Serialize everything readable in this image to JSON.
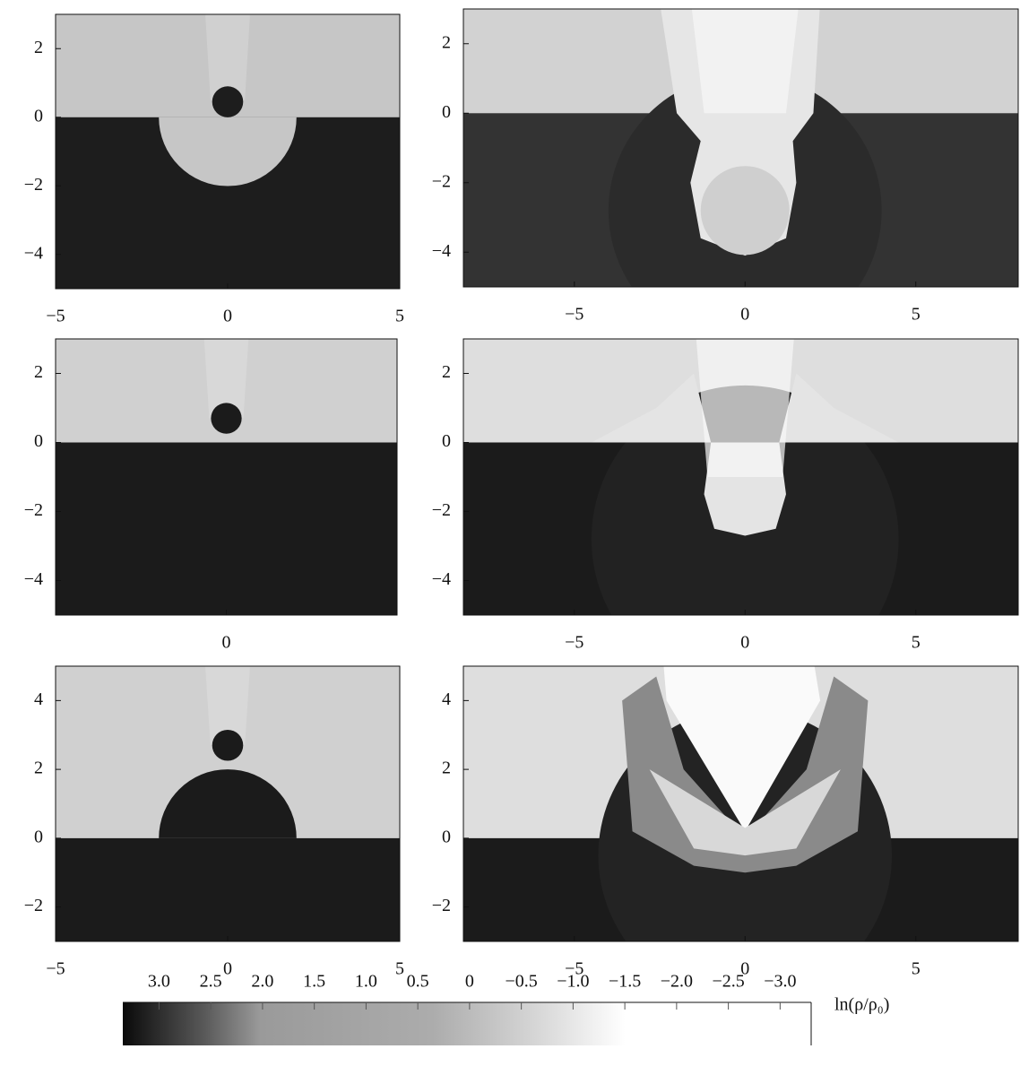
{
  "chart_data": [
    {
      "type": "heatmap",
      "xlim": [
        -5,
        5
      ],
      "ylim": [
        -5,
        3
      ],
      "xticks": [
        {
          "value": -5,
          "label": "−5"
        },
        0,
        5
      ],
      "yticks": [
        {
          "value": -4,
          "label": "−4"
        },
        {
          "value": -2,
          "label": "−2"
        },
        0,
        2
      ]
    },
    {
      "type": "heatmap",
      "xlim": [
        -8.25,
        8
      ],
      "ylim": [
        -5,
        3
      ],
      "xticks": [
        {
          "value": -5,
          "label": "−5"
        },
        0,
        5
      ],
      "yticks": [
        {
          "value": -4,
          "label": "−4"
        },
        {
          "value": -2,
          "label": "−2"
        },
        0,
        2
      ]
    },
    {
      "type": "heatmap",
      "xlim": [
        -5,
        5
      ],
      "ylim": [
        -5,
        3
      ],
      "xticks": [
        0
      ],
      "yticks": [
        {
          "value": -4,
          "label": "−4"
        },
        {
          "value": -2,
          "label": "−2"
        },
        0,
        2
      ]
    },
    {
      "type": "heatmap",
      "xlim": [
        -8.25,
        8
      ],
      "ylim": [
        -5,
        3
      ],
      "xticks": [
        {
          "value": -5,
          "label": "−5"
        },
        0,
        5
      ],
      "yticks": [
        {
          "value": -4,
          "label": "−4"
        },
        {
          "value": -2,
          "label": "−2"
        },
        0,
        2
      ]
    },
    {
      "type": "heatmap",
      "xlim": [
        -5,
        5
      ],
      "ylim": [
        -3,
        5
      ],
      "xticks": [
        {
          "value": -5,
          "label": "−5"
        },
        0,
        5
      ],
      "yticks": [
        {
          "value": -2,
          "label": "−2"
        },
        0,
        2,
        4
      ]
    },
    {
      "type": "heatmap",
      "xlim": [
        -8.25,
        8
      ],
      "ylim": [
        -3,
        5
      ],
      "xticks": [
        {
          "value": -5,
          "label": "−5"
        },
        0,
        5
      ],
      "yticks": [
        {
          "value": -2,
          "label": "−2"
        },
        0,
        2,
        4
      ]
    },
    {
      "type": "colorbar",
      "label": "ln(ρ/ρ₀)",
      "xlim": [
        3.35,
        -3.3
      ],
      "xticks": [
        {
          "value": 3,
          "label": "3.0"
        },
        2.5,
        {
          "value": 2,
          "label": "2.0"
        },
        1.5,
        {
          "value": 1,
          "label": "1.0"
        },
        0.5,
        0,
        {
          "value": -0.5,
          "label": "−0.5"
        },
        {
          "value": -1,
          "label": "−1.0"
        },
        {
          "value": -1.5,
          "label": "−1.5"
        },
        {
          "value": -2,
          "label": "−2.0"
        },
        {
          "value": -2.5,
          "label": "−2.5"
        },
        {
          "value": -3,
          "label": "−3.0"
        }
      ]
    }
  ]
}
